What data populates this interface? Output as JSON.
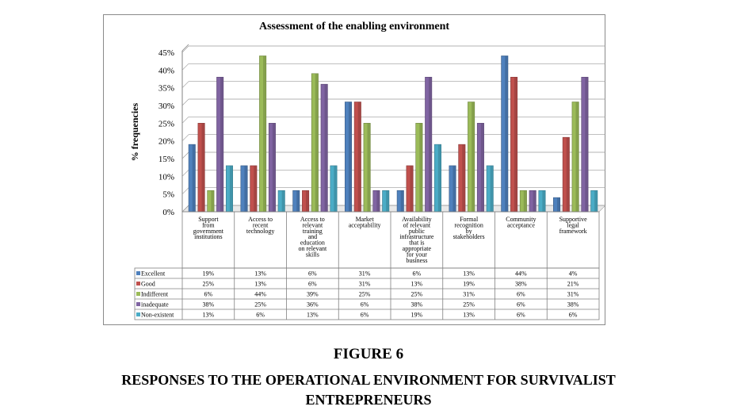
{
  "chart_data": {
    "type": "bar",
    "title": "Assessment of the enabling environment",
    "ylabel": "% frequencies",
    "xlabel": "",
    "ylim": [
      0,
      45
    ],
    "yticks": [
      "0%",
      "5%",
      "10%",
      "15%",
      "20%",
      "25%",
      "30%",
      "35%",
      "40%",
      "45%"
    ],
    "grid": true,
    "legend": "data-table-left",
    "categories": [
      "Support from government institutions",
      "Access to recent technology",
      "Access to relevant training and education on relevant skills",
      "Market acceptability",
      "Availability of relevant public infrastructure that is appropriate for your business",
      "Formal recognition by stakeholders",
      "Community acceptance",
      "Supportive legal framework"
    ],
    "series": [
      {
        "name": "Excellent",
        "color": "#4F81BD",
        "values": [
          19,
          13,
          6,
          31,
          6,
          13,
          44,
          4
        ],
        "labels": [
          "19%",
          "13%",
          "6%",
          "31%",
          "6%",
          "13%",
          "44%",
          "4%"
        ]
      },
      {
        "name": "Good",
        "color": "#C0504D",
        "values": [
          25,
          13,
          6,
          31,
          13,
          19,
          38,
          21
        ],
        "labels": [
          "25%",
          "13%",
          "6%",
          "31%",
          "13%",
          "19%",
          "38%",
          "21%"
        ]
      },
      {
        "name": "Indifferent",
        "color": "#9BBB59",
        "values": [
          6,
          44,
          39,
          25,
          25,
          31,
          6,
          31
        ],
        "labels": [
          "6%",
          "44%",
          "39%",
          "25%",
          "25%",
          "31%",
          "6%",
          "31%"
        ]
      },
      {
        "name": "inadequate",
        "color": "#8064A2",
        "values": [
          38,
          25,
          36,
          6,
          38,
          25,
          6,
          38
        ],
        "labels": [
          "38%",
          "25%",
          "36%",
          "6%",
          "38%",
          "25%",
          "6%",
          "38%"
        ]
      },
      {
        "name": "Non-existent",
        "color": "#4BACC6",
        "values": [
          13,
          6,
          13,
          6,
          19,
          13,
          6,
          6
        ],
        "labels": [
          "13%",
          "6%",
          "13%",
          "6%",
          "19%",
          "13%",
          "6%",
          "6%"
        ]
      }
    ]
  },
  "caption": {
    "figure_label": "FIGURE 6",
    "line1": "RESPONSES TO THE OPERATIONAL ENVIRONMENT FOR SURVIVALIST",
    "line2": "ENTREPRENEURS"
  }
}
